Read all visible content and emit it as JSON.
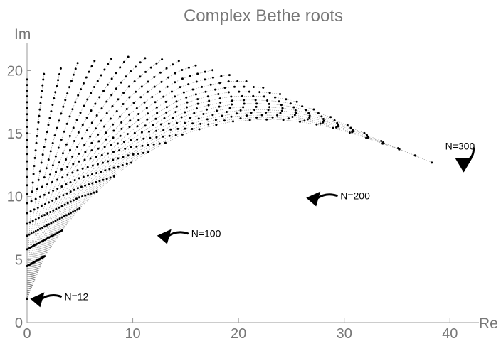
{
  "chart_data": {
    "type": "scatter",
    "title": "Complex Bethe roots",
    "xlabel": "Re",
    "ylabel": "Im",
    "xlim": [
      0,
      42
    ],
    "ylim": [
      0,
      22
    ],
    "x_ticks": [
      0,
      10,
      20,
      30,
      40
    ],
    "y_ticks": [
      0,
      5,
      10,
      15,
      20
    ],
    "grid": false,
    "legend": "none",
    "marker_color": "#000000",
    "line_color": "#888888",
    "series_model": {
      "N_min": 12,
      "N_max": 300,
      "N_step": 12,
      "bottom_arc_points": [
        [
          0,
          1.9
        ],
        [
          5,
          4.4
        ],
        [
          10,
          6.2
        ],
        [
          15,
          7.6
        ],
        [
          20,
          8.8
        ],
        [
          25,
          9.8
        ],
        [
          30,
          10.8
        ],
        [
          35,
          11.7
        ],
        [
          40.3,
          12.7
        ]
      ],
      "top_arc_points": [
        [
          0,
          19.3
        ],
        [
          5,
          20.6
        ],
        [
          10,
          21.1
        ],
        [
          15,
          20.8
        ],
        [
          20,
          19.7
        ],
        [
          25,
          18.2
        ],
        [
          30,
          16.4
        ],
        [
          35,
          14.5
        ],
        [
          40.3,
          12.7
        ]
      ]
    },
    "annotations": [
      {
        "text": "N=12",
        "x": 0.3,
        "y": 1.9
      },
      {
        "text": "N=100",
        "x": 12.3,
        "y": 6.9
      },
      {
        "text": "N=200",
        "x": 26.4,
        "y": 9.9
      },
      {
        "text": "N=300",
        "x": 41.3,
        "y": 12.6
      }
    ]
  }
}
